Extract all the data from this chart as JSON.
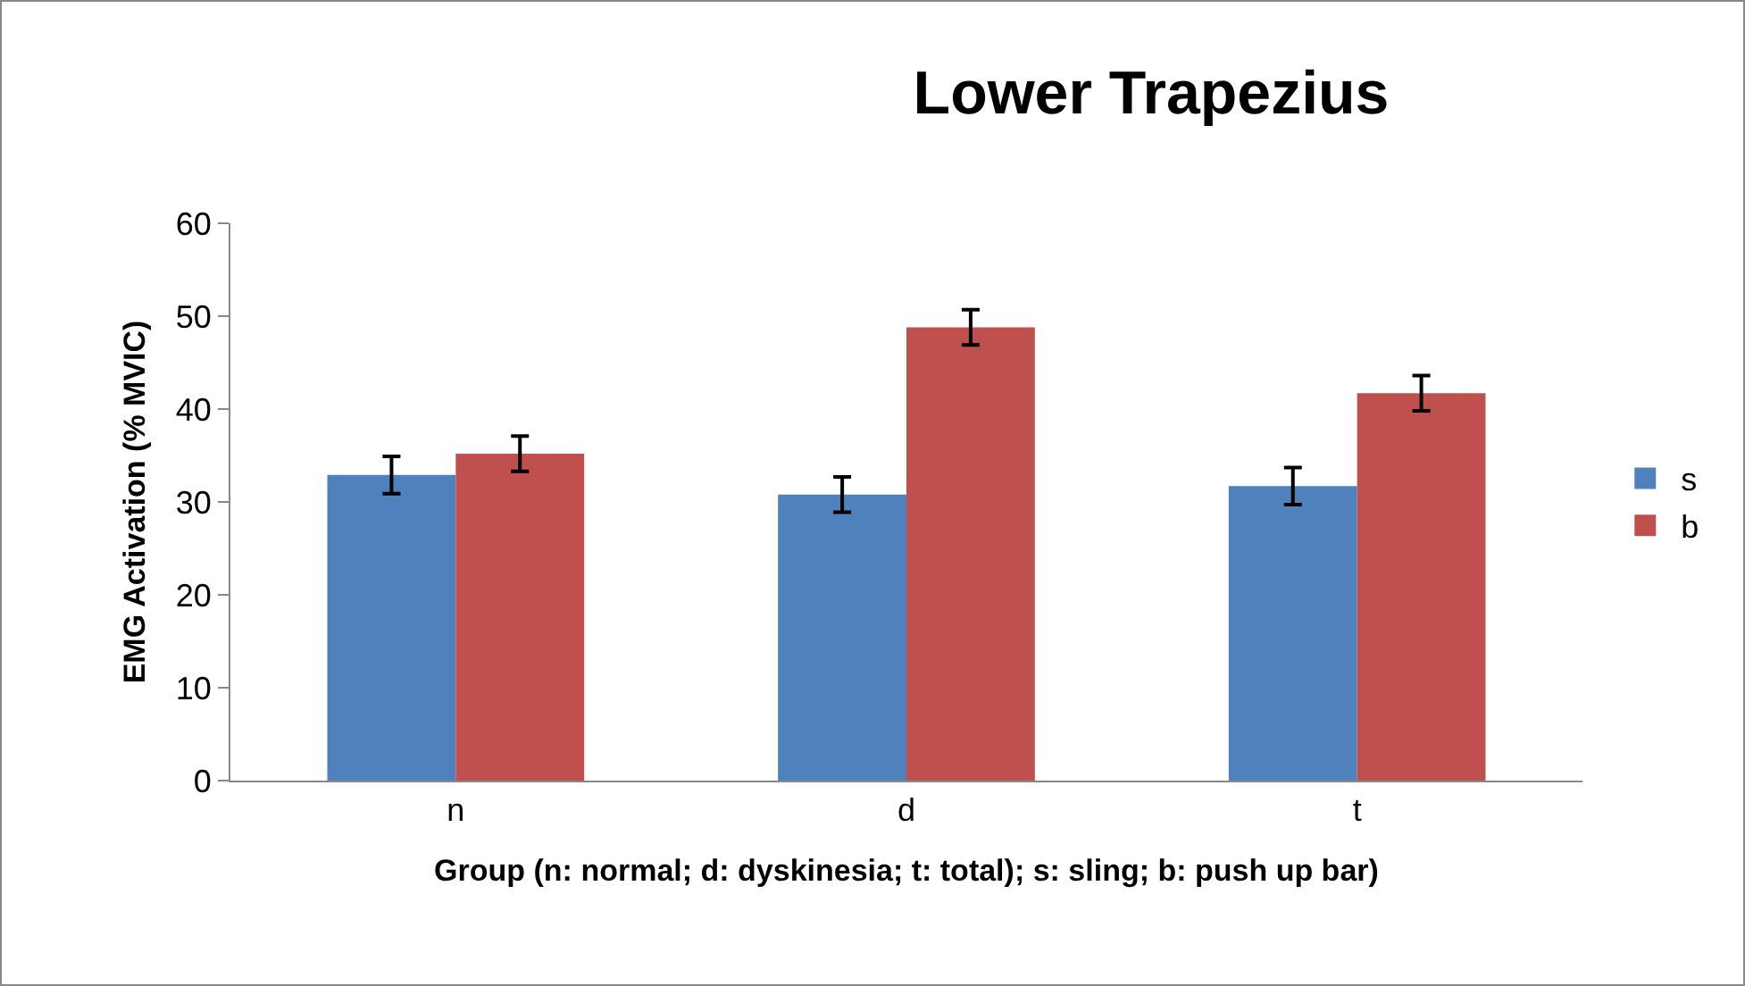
{
  "chart_data": {
    "type": "bar",
    "title": "Lower Trapezius",
    "xlabel": "Group (n: normal; d: dyskinesia; t: total); s: sling; b: push up bar)",
    "ylabel": "EMG Activation (% MVIC)",
    "categories": [
      "n",
      "d",
      "t"
    ],
    "series": [
      {
        "name": "s",
        "color": "#4f81bd",
        "values": [
          32.9,
          30.8,
          31.7
        ],
        "errors": [
          2,
          1.9,
          2
        ]
      },
      {
        "name": "b",
        "color": "#c0504d",
        "values": [
          35.2,
          48.8,
          41.7
        ],
        "errors": [
          1.9,
          1.9,
          1.9
        ]
      }
    ],
    "ylim": [
      0,
      60
    ],
    "yticks": [
      0,
      10,
      20,
      30,
      40,
      50,
      60
    ],
    "grid": false,
    "legend": "right"
  }
}
